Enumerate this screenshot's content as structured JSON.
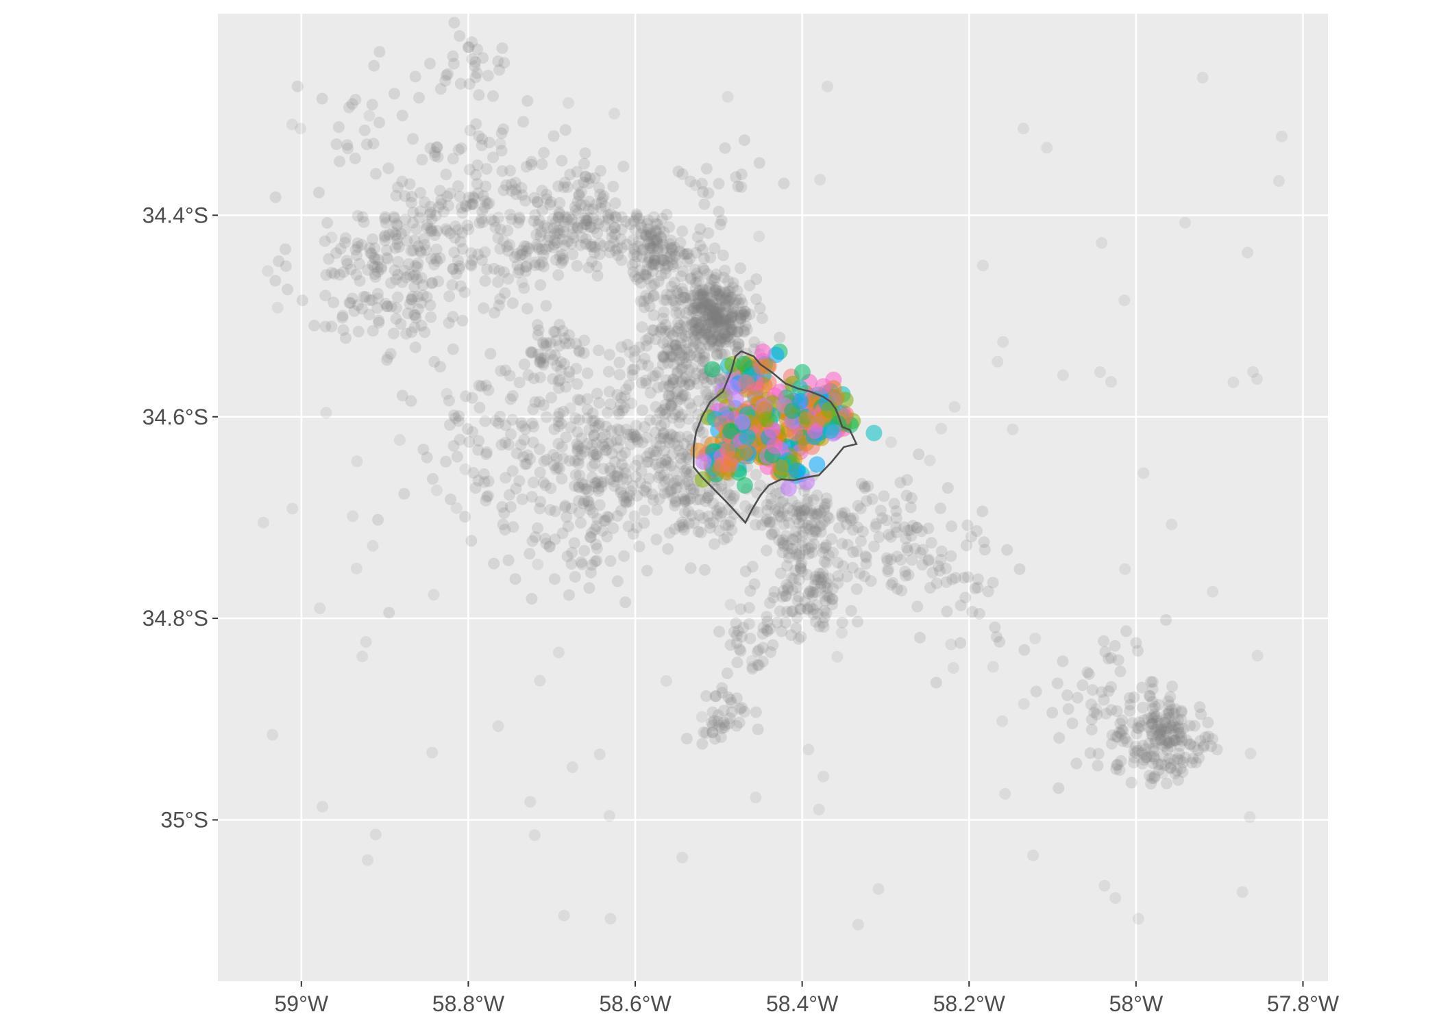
{
  "map": {
    "type": "scatter-map",
    "projection": "lon-lat",
    "xlim": [
      -59.1,
      -57.77
    ],
    "ylim": [
      -35.16,
      -34.2
    ],
    "x_ticks": [
      {
        "value": -59.0,
        "label": "59°W"
      },
      {
        "value": -58.8,
        "label": "58.8°W"
      },
      {
        "value": -58.6,
        "label": "58.6°W"
      },
      {
        "value": -58.4,
        "label": "58.4°W"
      },
      {
        "value": -58.2,
        "label": "58.2°W"
      },
      {
        "value": -58.0,
        "label": "58°W"
      },
      {
        "value": -57.8,
        "label": "57.8°W"
      }
    ],
    "y_ticks": [
      {
        "value": -34.4,
        "label": "34.4°S"
      },
      {
        "value": -34.6,
        "label": "34.6°S"
      },
      {
        "value": -34.8,
        "label": "34.8°S"
      },
      {
        "value": -35.0,
        "label": "35°S"
      }
    ],
    "grid": true,
    "legend": "none",
    "colors": {
      "panel": "#ebebeb",
      "grid": "#ffffff",
      "points": "#7f7f7f",
      "boundary": "#4d4d4d",
      "palette": [
        "#f8766d",
        "#e68613",
        "#00be67",
        "#00a9ff",
        "#c77cff",
        "#ff61cc",
        "#7cae00",
        "#00bfc4",
        "#cd9600"
      ]
    },
    "point_clusters": [
      {
        "lon": -58.91,
        "lat": -34.46,
        "sd": 0.05,
        "n": 140
      },
      {
        "lon": -58.84,
        "lat": -34.42,
        "sd": 0.04,
        "n": 90
      },
      {
        "lon": -58.78,
        "lat": -34.37,
        "sd": 0.04,
        "n": 60
      },
      {
        "lon": -58.74,
        "lat": -34.44,
        "sd": 0.04,
        "n": 80
      },
      {
        "lon": -58.66,
        "lat": -34.4,
        "sd": 0.035,
        "n": 150
      },
      {
        "lon": -58.58,
        "lat": -34.43,
        "sd": 0.02,
        "n": 90
      },
      {
        "lon": -58.54,
        "lat": -34.47,
        "sd": 0.03,
        "n": 120
      },
      {
        "lon": -58.5,
        "lat": -34.5,
        "sd": 0.02,
        "n": 200
      },
      {
        "lon": -58.53,
        "lat": -34.55,
        "sd": 0.04,
        "n": 220
      },
      {
        "lon": -58.56,
        "lat": -34.62,
        "sd": 0.05,
        "n": 150
      },
      {
        "lon": -58.7,
        "lat": -34.54,
        "sd": 0.02,
        "n": 50
      },
      {
        "lon": -58.78,
        "lat": -34.62,
        "sd": 0.05,
        "n": 60
      },
      {
        "lon": -58.66,
        "lat": -34.66,
        "sd": 0.06,
        "n": 260
      },
      {
        "lon": -58.52,
        "lat": -34.68,
        "sd": 0.04,
        "n": 110
      },
      {
        "lon": -58.4,
        "lat": -34.71,
        "sd": 0.03,
        "n": 130
      },
      {
        "lon": -58.4,
        "lat": -34.78,
        "sd": 0.025,
        "n": 90
      },
      {
        "lon": -58.3,
        "lat": -34.72,
        "sd": 0.04,
        "n": 80
      },
      {
        "lon": -58.22,
        "lat": -34.76,
        "sd": 0.04,
        "n": 50
      },
      {
        "lon": -58.46,
        "lat": -34.82,
        "sd": 0.02,
        "n": 30
      },
      {
        "lon": -58.5,
        "lat": -34.9,
        "sd": 0.02,
        "n": 40
      },
      {
        "lon": -57.96,
        "lat": -34.92,
        "sd": 0.025,
        "n": 160
      },
      {
        "lon": -58.04,
        "lat": -34.89,
        "sd": 0.04,
        "n": 70
      },
      {
        "lon": -58.8,
        "lat": -34.25,
        "sd": 0.03,
        "n": 30
      },
      {
        "lon": -58.9,
        "lat": -34.3,
        "sd": 0.05,
        "n": 30
      },
      {
        "lon": -58.5,
        "lat": -34.36,
        "sd": 0.03,
        "n": 20
      }
    ],
    "colored_clusters": [
      {
        "lon": -58.46,
        "lat": -34.56,
        "sd": 0.015,
        "n": 50
      },
      {
        "lon": -58.4,
        "lat": -34.59,
        "sd": 0.02,
        "n": 80
      },
      {
        "lon": -58.47,
        "lat": -34.61,
        "sd": 0.02,
        "n": 80
      },
      {
        "lon": -58.42,
        "lat": -34.63,
        "sd": 0.02,
        "n": 70
      },
      {
        "lon": -58.37,
        "lat": -34.6,
        "sd": 0.015,
        "n": 60
      },
      {
        "lon": -58.49,
        "lat": -34.64,
        "sd": 0.015,
        "n": 40
      }
    ],
    "boundary_polygon": [
      [
        -58.473,
        -34.535
      ],
      [
        -58.458,
        -34.54
      ],
      [
        -58.45,
        -34.548
      ],
      [
        -58.436,
        -34.556
      ],
      [
        -58.42,
        -34.567
      ],
      [
        -58.405,
        -34.572
      ],
      [
        -58.39,
        -34.575
      ],
      [
        -58.375,
        -34.58
      ],
      [
        -58.366,
        -34.585
      ],
      [
        -58.36,
        -34.592
      ],
      [
        -58.356,
        -34.6
      ],
      [
        -58.352,
        -34.61
      ],
      [
        -58.343,
        -34.613
      ],
      [
        -58.335,
        -34.627
      ],
      [
        -58.35,
        -34.63
      ],
      [
        -58.365,
        -34.645
      ],
      [
        -58.38,
        -34.658
      ],
      [
        -58.395,
        -34.66
      ],
      [
        -58.41,
        -34.663
      ],
      [
        -58.425,
        -34.662
      ],
      [
        -58.44,
        -34.668
      ],
      [
        -58.45,
        -34.678
      ],
      [
        -58.46,
        -34.692
      ],
      [
        -58.468,
        -34.705
      ],
      [
        -58.49,
        -34.685
      ],
      [
        -58.52,
        -34.66
      ],
      [
        -58.53,
        -34.65
      ],
      [
        -58.53,
        -34.63
      ],
      [
        -58.527,
        -34.615
      ],
      [
        -58.52,
        -34.6
      ],
      [
        -58.51,
        -34.585
      ],
      [
        -58.495,
        -34.575
      ],
      [
        -58.485,
        -34.555
      ],
      [
        -58.48,
        -34.54
      ],
      [
        -58.473,
        -34.535
      ]
    ]
  }
}
